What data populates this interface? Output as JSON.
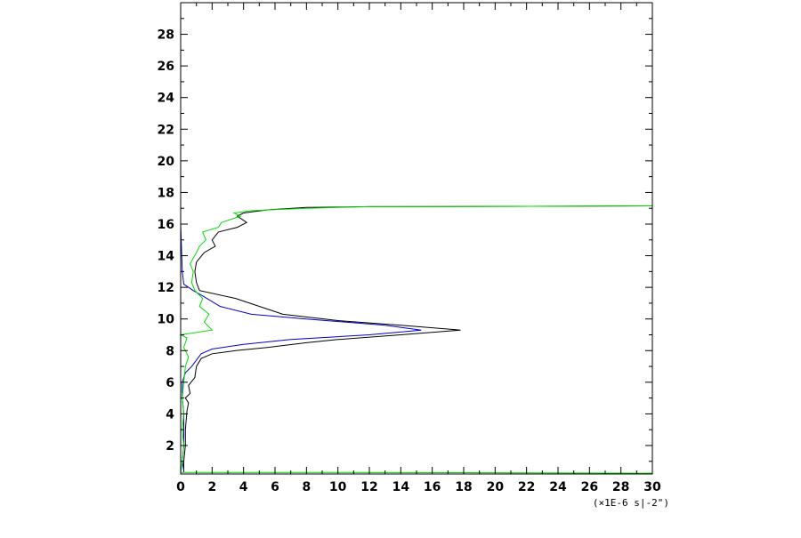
{
  "chart_data": {
    "type": "line",
    "title": "",
    "xlabel": "",
    "ylabel": "",
    "x_unit_label": "(×1E-6 s|-2\")",
    "xlim": [
      0,
      30
    ],
    "ylim": [
      0.2,
      30
    ],
    "x_ticks": [
      "0",
      "2",
      "4",
      "6",
      "8",
      "10",
      "12",
      "14",
      "16",
      "18",
      "20",
      "22",
      "24",
      "26",
      "28",
      "30"
    ],
    "y_ticks": [
      "2",
      "4",
      "6",
      "8",
      "10",
      "12",
      "14",
      "16",
      "18",
      "20",
      "22",
      "24",
      "26",
      "28"
    ],
    "grid": false,
    "legend": "none",
    "series": [
      {
        "color": "#000000",
        "points": [
          [
            0.2,
            0.3
          ],
          [
            0.2,
            1.0
          ],
          [
            0.3,
            2.0
          ],
          [
            0.3,
            3.0
          ],
          [
            0.4,
            4.2
          ],
          [
            0.5,
            4.7
          ],
          [
            0.3,
            5.0
          ],
          [
            0.6,
            5.3
          ],
          [
            0.5,
            5.8
          ],
          [
            0.9,
            6.3
          ],
          [
            1.0,
            7.0
          ],
          [
            1.3,
            7.5
          ],
          [
            2.0,
            7.8
          ],
          [
            3.5,
            8.0
          ],
          [
            5.5,
            8.2
          ],
          [
            8.0,
            8.5
          ],
          [
            10.0,
            8.7
          ],
          [
            14.0,
            9.0
          ],
          [
            17.8,
            9.3
          ],
          [
            14.0,
            9.6
          ],
          [
            10.0,
            9.9
          ],
          [
            6.5,
            10.3
          ],
          [
            5.0,
            10.8
          ],
          [
            3.5,
            11.3
          ],
          [
            1.2,
            11.8
          ],
          [
            1.0,
            12.3
          ],
          [
            0.9,
            13.0
          ],
          [
            1.0,
            13.6
          ],
          [
            1.5,
            14.2
          ],
          [
            2.2,
            14.6
          ],
          [
            2.0,
            15.0
          ],
          [
            2.4,
            15.5
          ],
          [
            3.6,
            15.8
          ],
          [
            4.2,
            16.1
          ],
          [
            3.6,
            16.5
          ],
          [
            4.0,
            16.7
          ],
          [
            5.5,
            16.9
          ],
          [
            8.0,
            17.05
          ],
          [
            12.0,
            17.1
          ],
          [
            20.0,
            17.12
          ],
          [
            30.0,
            17.15
          ]
        ]
      },
      {
        "color": "#0000cc",
        "points": [
          [
            0.0,
            28.0
          ],
          [
            0.0,
            20.0
          ],
          [
            0.0,
            16.0
          ],
          [
            0.1,
            13.0
          ],
          [
            0.2,
            12.2
          ],
          [
            0.8,
            11.8
          ],
          [
            1.5,
            11.4
          ],
          [
            2.5,
            10.8
          ],
          [
            4.5,
            10.3
          ],
          [
            8.0,
            10.0
          ],
          [
            13.0,
            9.6
          ],
          [
            15.3,
            9.3
          ],
          [
            12.0,
            9.0
          ],
          [
            7.0,
            8.7
          ],
          [
            4.0,
            8.4
          ],
          [
            2.0,
            8.1
          ],
          [
            1.3,
            7.8
          ],
          [
            1.0,
            7.4
          ],
          [
            0.7,
            7.0
          ],
          [
            0.3,
            6.6
          ],
          [
            0.1,
            6.0
          ],
          [
            0.1,
            5.0
          ],
          [
            0.2,
            4.0
          ],
          [
            0.2,
            3.0
          ],
          [
            0.2,
            2.0
          ],
          [
            0.1,
            1.0
          ],
          [
            0.2,
            0.4
          ]
        ]
      },
      {
        "color": "#00dd00",
        "points": [
          [
            0.0,
            0.3
          ],
          [
            0.1,
            1.0
          ],
          [
            0.2,
            2.0
          ],
          [
            0.1,
            3.0
          ],
          [
            0.2,
            4.0
          ],
          [
            0.1,
            5.0
          ],
          [
            0.2,
            6.0
          ],
          [
            0.3,
            7.0
          ],
          [
            0.5,
            7.6
          ],
          [
            0.2,
            8.2
          ],
          [
            0.4,
            8.8
          ],
          [
            0.0,
            9.0
          ],
          [
            2.0,
            9.3
          ],
          [
            1.5,
            9.8
          ],
          [
            1.8,
            10.3
          ],
          [
            1.2,
            10.8
          ],
          [
            1.4,
            11.3
          ],
          [
            0.9,
            11.8
          ],
          [
            0.7,
            12.3
          ],
          [
            0.8,
            13.0
          ],
          [
            0.6,
            13.5
          ],
          [
            1.0,
            14.2
          ],
          [
            1.2,
            14.6
          ],
          [
            1.6,
            15.0
          ],
          [
            1.4,
            15.5
          ],
          [
            2.4,
            15.8
          ],
          [
            2.6,
            16.1
          ],
          [
            3.8,
            16.5
          ],
          [
            3.4,
            16.7
          ],
          [
            4.5,
            16.85
          ],
          [
            8.0,
            17.0
          ],
          [
            12.0,
            17.1
          ],
          [
            20.0,
            17.12
          ],
          [
            30.0,
            17.15
          ]
        ]
      },
      {
        "color": "#00dd00",
        "points": [
          [
            0.0,
            0.3
          ],
          [
            10.0,
            0.3
          ],
          [
            20.0,
            0.28
          ],
          [
            30.0,
            0.25
          ]
        ]
      }
    ]
  }
}
